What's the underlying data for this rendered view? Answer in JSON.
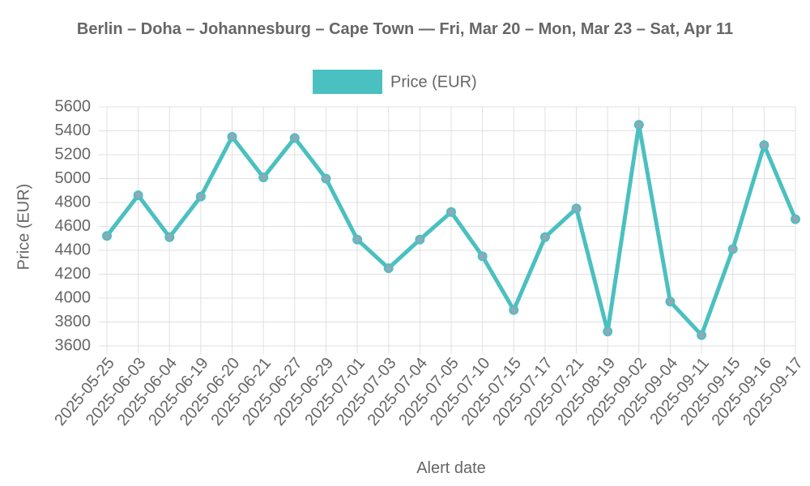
{
  "chart_data": {
    "type": "line",
    "title": "Berlin – Doha – Johannesburg – Cape Town — Fri, Mar 20 – Mon, Mar 23 – Sat, Apr 11",
    "x_label": "Alert date",
    "y_label": "Price (EUR)",
    "categories": [
      "2025-05-25",
      "2025-06-03",
      "2025-06-04",
      "2025-06-19",
      "2025-06-20",
      "2025-06-21",
      "2025-06-27",
      "2025-06-29",
      "2025-07-01",
      "2025-07-03",
      "2025-07-04",
      "2025-07-05",
      "2025-07-10",
      "2025-07-15",
      "2025-07-17",
      "2025-07-21",
      "2025-08-19",
      "2025-09-02",
      "2025-09-04",
      "2025-09-11",
      "2025-09-15",
      "2025-09-16",
      "2025-09-17"
    ],
    "series": [
      {
        "name": "Price (EUR)",
        "color": "#4bc0c0",
        "values": [
          4520,
          4860,
          4510,
          4850,
          5350,
          5010,
          5340,
          5000,
          4490,
          4250,
          4490,
          4720,
          4350,
          3900,
          4510,
          4750,
          3720,
          5450,
          3970,
          3690,
          4410,
          5280,
          4660
        ]
      }
    ],
    "ylim": [
      3600,
      5600
    ],
    "yticks": [
      3600,
      3800,
      4000,
      4200,
      4400,
      4600,
      4800,
      5000,
      5200,
      5400,
      5600
    ],
    "grid": true,
    "legend": "top"
  }
}
